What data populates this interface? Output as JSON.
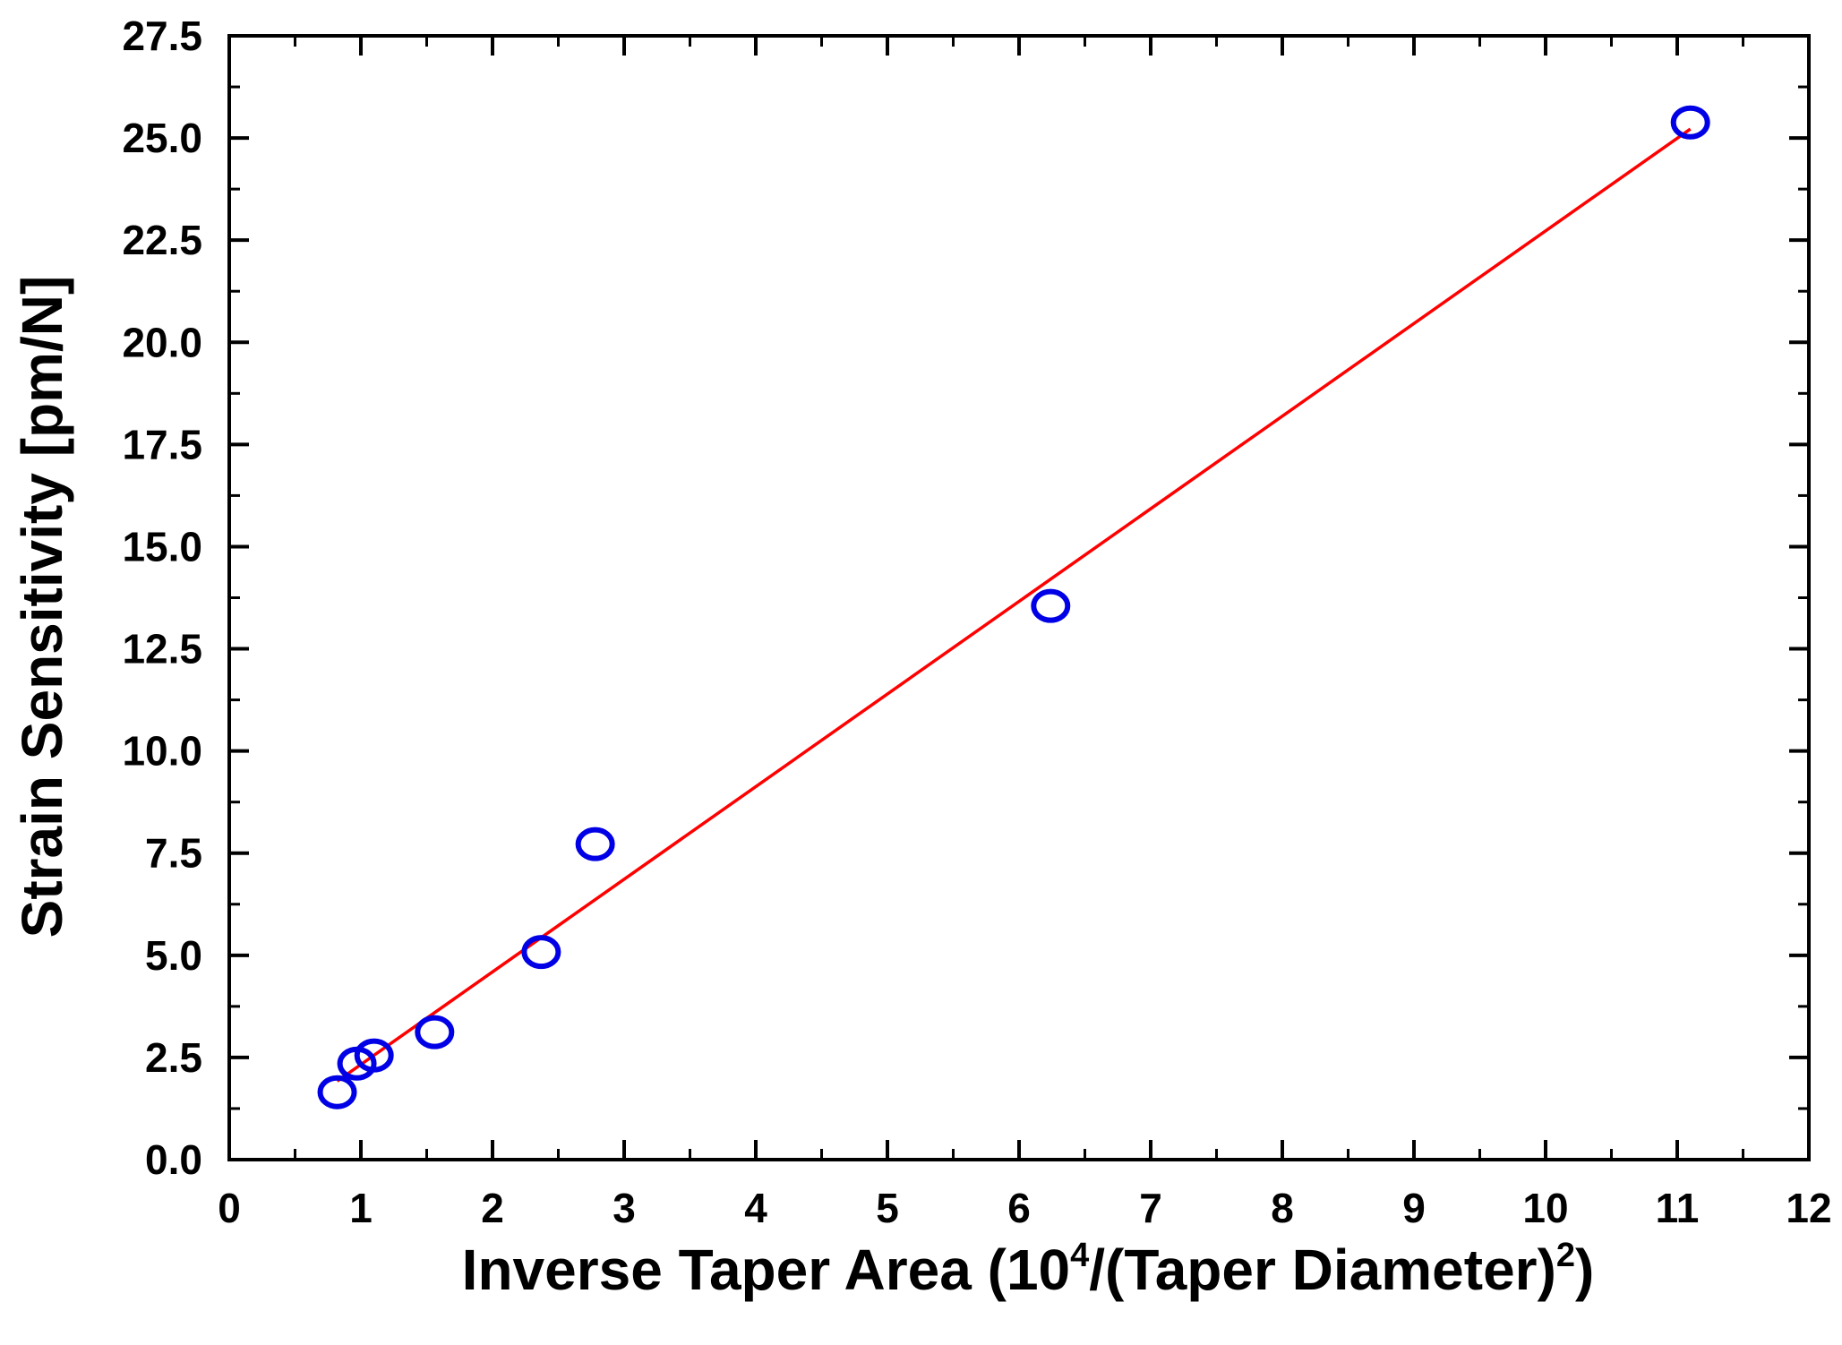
{
  "chart_data": {
    "type": "scatter",
    "title": "",
    "xlabel": {
      "prefix": "Inverse Taper Area (10",
      "sup1": "4",
      "middle": "/(Taper Diameter)",
      "sup2": "2",
      "suffix": ")"
    },
    "ylabel": "Strain Sensitivity [pm/N]",
    "xlim": [
      0,
      12
    ],
    "ylim": [
      0,
      27.5
    ],
    "x_ticks": [
      0,
      1,
      2,
      3,
      4,
      5,
      6,
      7,
      8,
      9,
      10,
      11,
      12
    ],
    "x_tick_labels": [
      "0",
      "1",
      "2",
      "3",
      "4",
      "5",
      "6",
      "7",
      "8",
      "9",
      "10",
      "11",
      "12"
    ],
    "y_ticks": [
      0,
      2.5,
      5,
      7.5,
      10,
      12.5,
      15,
      17.5,
      20,
      22.5,
      25,
      27.5
    ],
    "y_tick_labels": [
      "0.0",
      "2.5",
      "5.0",
      "7.5",
      "10.0",
      "12.5",
      "15.0",
      "17.5",
      "20.0",
      "22.5",
      "25.0",
      "27.5"
    ],
    "grid": false,
    "series": [
      {
        "kind": "scatter",
        "marker": "open-circle",
        "color": "#0000e6",
        "points": [
          {
            "x": 0.82,
            "y": 1.65
          },
          {
            "x": 0.97,
            "y": 2.35
          },
          {
            "x": 1.1,
            "y": 2.55
          },
          {
            "x": 1.56,
            "y": 3.12
          },
          {
            "x": 2.37,
            "y": 5.08
          },
          {
            "x": 2.78,
            "y": 7.72
          },
          {
            "x": 6.24,
            "y": 13.55
          },
          {
            "x": 11.1,
            "y": 25.38
          }
        ]
      },
      {
        "kind": "line",
        "style": "linear-fit",
        "color": "#ff0000",
        "points": [
          {
            "x": 0.82,
            "y": 1.92
          },
          {
            "x": 11.1,
            "y": 25.22
          }
        ]
      }
    ]
  }
}
